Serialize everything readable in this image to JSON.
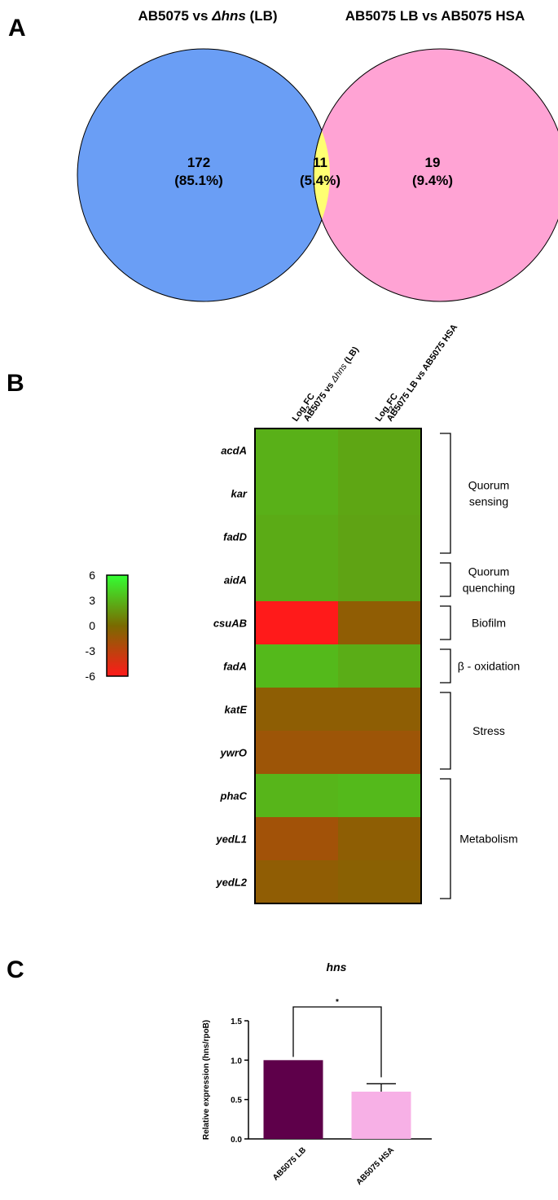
{
  "panels": [
    "A",
    "B",
    "C"
  ],
  "venn": {
    "left_title": "AB5075 vs ",
    "left_title_italic": "Δhns",
    "left_title_suffix": " (LB)",
    "right_title": "AB5075 LB vs AB5075 HSA",
    "left_count": "172",
    "left_pct": "(85.1%)",
    "center_count": "11",
    "center_pct": "(5.4%)",
    "right_count": "19",
    "right_pct": "(9.4%)",
    "colors": {
      "left": "#6a9ef5",
      "right": "#ffa3d4",
      "overlap": "#ffff72"
    }
  },
  "chart_data": [
    {
      "type": "heatmap",
      "columns": [
        {
          "line1": "Log",
          "sub": "2",
          "line1b": "FC",
          "line2": "AB5075 vs ",
          "line2_italic": "Δhns",
          "line2_suffix": " (LB)"
        },
        {
          "line1": "Log",
          "sub": "2",
          "line1b": "FC",
          "line2": "AB5075 LB vs AB5075 HSA"
        }
      ],
      "rows": [
        "acdA",
        "kar",
        "fadD",
        "aidA",
        "csuAB",
        "fadA",
        "katE",
        "ywrO",
        "phaC",
        "yedL1",
        "yedL2"
      ],
      "values": [
        [
          2.8,
          2.4
        ],
        [
          2.8,
          2.4
        ],
        [
          2.6,
          2.3
        ],
        [
          2.6,
          2.3
        ],
        [
          -6.0,
          -1.0
        ],
        [
          3.2,
          2.7
        ],
        [
          -0.9,
          -0.9
        ],
        [
          -1.6,
          -1.6
        ],
        [
          3.0,
          3.2
        ],
        [
          -1.8,
          -0.9
        ],
        [
          -1.0,
          -0.7
        ]
      ],
      "scale": {
        "min": -6,
        "max": 6,
        "ticks": [
          "6",
          "3",
          "0",
          "-3",
          "-6"
        ],
        "low_color": "#ff1a1a",
        "mid_color": "#7a6a00",
        "high_color": "#33ff33"
      },
      "groups": [
        {
          "label_lines": [
            "Quorum",
            "sensing"
          ],
          "rows": [
            0,
            2
          ]
        },
        {
          "label_lines": [
            "Quorum",
            "quenching"
          ],
          "rows": [
            3,
            3
          ]
        },
        {
          "label_lines": [
            "Biofilm"
          ],
          "rows": [
            4,
            4
          ]
        },
        {
          "label_lines": [
            "β - oxidation"
          ],
          "rows": [
            5,
            5
          ]
        },
        {
          "label_lines": [
            "Stress"
          ],
          "rows": [
            6,
            7
          ]
        },
        {
          "label_lines": [
            "Metabolism"
          ],
          "rows": [
            8,
            10
          ]
        }
      ]
    },
    {
      "type": "bar",
      "title": "hns",
      "ylabel": "Relative expression (hns/rpoB)",
      "categories": [
        "AB5075 LB",
        "AB5075 HSA"
      ],
      "values": [
        1.0,
        0.6
      ],
      "errors": [
        0,
        0.1
      ],
      "colors": [
        "#5e004a",
        "#f7b0e6"
      ],
      "ylim": [
        0,
        1.5
      ],
      "yticks": [
        "0.0",
        "0.5",
        "1.0",
        "1.5"
      ],
      "significance": "*"
    }
  ]
}
